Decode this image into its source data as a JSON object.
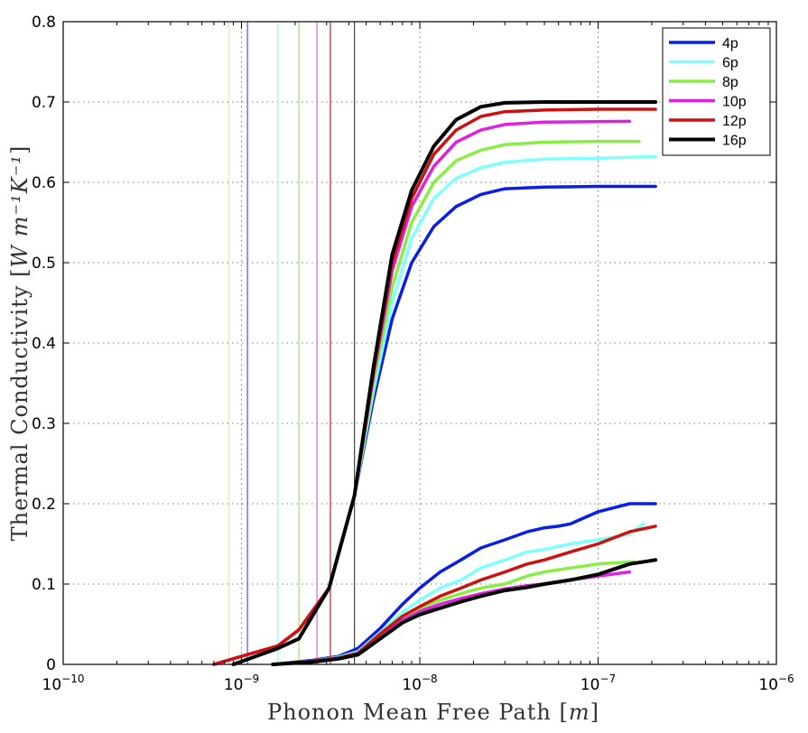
{
  "chart_data": {
    "type": "line",
    "xscale": "log",
    "xlabel": "Phonon Mean Free Path",
    "xunit": "m",
    "ylabel": "Thermal Conductivity",
    "yunit": "W m⁻¹K⁻¹",
    "xlim": [
      1e-10,
      1e-06
    ],
    "ylim": [
      0,
      0.8
    ],
    "grid": "dotted",
    "legend_position": "top-right",
    "xticks": [
      {
        "value": 1e-10,
        "base": "10",
        "exp": "−10"
      },
      {
        "value": 1e-09,
        "base": "10",
        "exp": "−9"
      },
      {
        "value": 1e-08,
        "base": "10",
        "exp": "−8"
      },
      {
        "value": 1e-07,
        "base": "10",
        "exp": "−7"
      },
      {
        "value": 1e-06,
        "base": "10",
        "exp": "−6"
      }
    ],
    "yticks": [
      {
        "value": 0,
        "label": "0"
      },
      {
        "value": 0.1,
        "label": "0.1"
      },
      {
        "value": 0.2,
        "label": "0.2"
      },
      {
        "value": 0.3,
        "label": "0.3"
      },
      {
        "value": 0.4,
        "label": "0.4"
      },
      {
        "value": 0.5,
        "label": "0.5"
      },
      {
        "value": 0.6,
        "label": "0.6"
      },
      {
        "value": 0.7,
        "label": "0.7"
      },
      {
        "value": 0.8,
        "label": "0.8"
      }
    ],
    "vertical_lines": [
      {
        "x": 8.5e-10,
        "color": "#f0f060"
      },
      {
        "x": 1.08e-09,
        "color": "#5555cc"
      },
      {
        "x": 1.6e-09,
        "color": "#80ffff"
      },
      {
        "x": 2.1e-09,
        "color": "#90ee50"
      },
      {
        "x": 2.65e-09,
        "color": "#e060e0"
      },
      {
        "x": 3.15e-09,
        "color": "#cc2222"
      },
      {
        "x": 4.3e-09,
        "color": "#444444"
      }
    ],
    "series": [
      {
        "name": "4p",
        "color": "#0a1ee6",
        "width": 3.5,
        "x": [
          7e-10,
          1e-09,
          1.6e-09,
          2.1e-09,
          3.1e-09,
          4.3e-09,
          5.5e-09,
          7e-09,
          9e-09,
          1.2e-08,
          1.6e-08,
          2.2e-08,
          3e-08,
          5e-08,
          1e-07,
          2.1e-07
        ],
        "y": [
          0,
          0.01,
          0.023,
          0.043,
          0.095,
          0.21,
          0.33,
          0.43,
          0.5,
          0.545,
          0.57,
          0.585,
          0.592,
          0.594,
          0.595,
          0.595
        ]
      },
      {
        "name": "6p",
        "color": "#80ffff",
        "width": 3.5,
        "x": [
          7e-10,
          1e-09,
          1.6e-09,
          2.1e-09,
          3.1e-09,
          4.3e-09,
          5.5e-09,
          7e-09,
          9e-09,
          1.2e-08,
          1.6e-08,
          2.2e-08,
          3e-08,
          5e-08,
          1e-07,
          2.1e-07
        ],
        "y": [
          0,
          0.01,
          0.023,
          0.043,
          0.095,
          0.21,
          0.34,
          0.45,
          0.53,
          0.58,
          0.605,
          0.618,
          0.625,
          0.629,
          0.63,
          0.632
        ]
      },
      {
        "name": "8p",
        "color": "#88ee44",
        "width": 3.5,
        "x": [
          7e-10,
          1e-09,
          1.6e-09,
          2.1e-09,
          3.1e-09,
          4.3e-09,
          5.5e-09,
          7e-09,
          9e-09,
          1.2e-08,
          1.6e-08,
          2.2e-08,
          3e-08,
          5e-08,
          1e-07,
          1.7e-07
        ],
        "y": [
          0,
          0.01,
          0.023,
          0.043,
          0.095,
          0.21,
          0.35,
          0.47,
          0.55,
          0.6,
          0.627,
          0.64,
          0.647,
          0.65,
          0.651,
          0.651
        ]
      },
      {
        "name": "10p",
        "color": "#dd22dd",
        "width": 3.5,
        "x": [
          7e-10,
          1e-09,
          1.6e-09,
          2.1e-09,
          3.1e-09,
          4.3e-09,
          5.5e-09,
          7e-09,
          9e-09,
          1.2e-08,
          1.6e-08,
          2.2e-08,
          3e-08,
          5e-08,
          1.5e-07
        ],
        "y": [
          0,
          0.01,
          0.023,
          0.043,
          0.095,
          0.21,
          0.36,
          0.49,
          0.57,
          0.62,
          0.65,
          0.665,
          0.672,
          0.675,
          0.676
        ]
      },
      {
        "name": "12p",
        "color": "#cc1111",
        "width": 3.5,
        "x": [
          7e-10,
          1e-09,
          1.6e-09,
          2.1e-09,
          3.1e-09,
          4.3e-09,
          5.5e-09,
          7e-09,
          9e-09,
          1.2e-08,
          1.6e-08,
          2.2e-08,
          3e-08,
          5e-08,
          1e-07,
          2.1e-07
        ],
        "y": [
          0,
          0.01,
          0.023,
          0.043,
          0.095,
          0.21,
          0.365,
          0.5,
          0.58,
          0.635,
          0.665,
          0.682,
          0.688,
          0.69,
          0.691,
          0.691
        ]
      },
      {
        "name": "16p",
        "color": "#000000",
        "width": 4,
        "x": [
          9e-10,
          1.6e-09,
          2.1e-09,
          3.1e-09,
          4.3e-09,
          5.5e-09,
          7e-09,
          9e-09,
          1.2e-08,
          1.6e-08,
          2.2e-08,
          3e-08,
          5e-08,
          1e-07,
          2.1e-07
        ],
        "y": [
          0,
          0.02,
          0.032,
          0.095,
          0.21,
          0.37,
          0.51,
          0.59,
          0.645,
          0.678,
          0.694,
          0.699,
          0.7,
          0.7,
          0.7
        ]
      }
    ],
    "secondary_series": [
      {
        "name": "4p",
        "color": "#0a1ee6",
        "width": 3.5,
        "x": [
          1.5e-09,
          2.5e-09,
          3.5e-09,
          4.5e-09,
          6e-09,
          8e-09,
          1e-08,
          1.3e-08,
          1.7e-08,
          2.2e-08,
          3e-08,
          4e-08,
          5e-08,
          6e-08,
          7e-08,
          1e-07,
          1.5e-07,
          2.1e-07
        ],
        "y": [
          0,
          0.005,
          0.01,
          0.02,
          0.045,
          0.075,
          0.095,
          0.115,
          0.13,
          0.145,
          0.155,
          0.165,
          0.17,
          0.172,
          0.175,
          0.19,
          0.2,
          0.2
        ]
      },
      {
        "name": "6p",
        "color": "#80ffff",
        "width": 3.5,
        "x": [
          1.5e-09,
          2.5e-09,
          3.5e-09,
          4.5e-09,
          6e-09,
          8e-09,
          1e-08,
          1.3e-08,
          1.7e-08,
          2.2e-08,
          3e-08,
          4e-08,
          5e-08,
          7e-08,
          1e-07,
          1.5e-07,
          1.8e-07
        ],
        "y": [
          0,
          0.004,
          0.009,
          0.016,
          0.04,
          0.065,
          0.08,
          0.095,
          0.105,
          0.12,
          0.13,
          0.14,
          0.143,
          0.15,
          0.155,
          0.162,
          0.175
        ]
      },
      {
        "name": "8p",
        "color": "#88ee44",
        "width": 3.5,
        "x": [
          1.5e-09,
          2.5e-09,
          3.5e-09,
          4.5e-09,
          6e-09,
          8e-09,
          1e-08,
          1.3e-08,
          1.7e-08,
          2.2e-08,
          3e-08,
          4e-08,
          5e-08,
          7e-08,
          1e-07,
          1.6e-07
        ],
        "y": [
          0,
          0.003,
          0.007,
          0.012,
          0.035,
          0.058,
          0.07,
          0.08,
          0.088,
          0.095,
          0.1,
          0.11,
          0.115,
          0.12,
          0.125,
          0.128
        ]
      },
      {
        "name": "10p",
        "color": "#dd22dd",
        "width": 3.5,
        "x": [
          1.5e-09,
          2.5e-09,
          3.5e-09,
          4.5e-09,
          6e-09,
          8e-09,
          1e-08,
          1.3e-08,
          1.7e-08,
          2.2e-08,
          3e-08,
          4e-08,
          5e-08,
          7e-08,
          1e-07,
          1.5e-07
        ],
        "y": [
          0,
          0.003,
          0.007,
          0.012,
          0.034,
          0.055,
          0.066,
          0.075,
          0.082,
          0.088,
          0.094,
          0.098,
          0.1,
          0.105,
          0.11,
          0.115
        ]
      },
      {
        "name": "12p",
        "color": "#cc1111",
        "width": 3.5,
        "x": [
          1.5e-09,
          2.5e-09,
          3.5e-09,
          4.5e-09,
          6e-09,
          8e-09,
          1e-08,
          1.3e-08,
          1.7e-08,
          2.2e-08,
          3e-08,
          4e-08,
          5e-08,
          7e-08,
          1e-07,
          1.5e-07,
          2.1e-07
        ],
        "y": [
          0,
          0.004,
          0.008,
          0.014,
          0.038,
          0.06,
          0.072,
          0.085,
          0.095,
          0.105,
          0.115,
          0.125,
          0.13,
          0.14,
          0.15,
          0.165,
          0.172
        ]
      },
      {
        "name": "16p",
        "color": "#000000",
        "width": 4,
        "x": [
          1.5e-09,
          2.5e-09,
          3.5e-09,
          4.5e-09,
          6e-09,
          8e-09,
          1e-08,
          1.3e-08,
          1.7e-08,
          2.2e-08,
          3e-08,
          4e-08,
          5e-08,
          7e-08,
          1e-07,
          1.5e-07,
          2.1e-07
        ],
        "y": [
          0,
          0.003,
          0.007,
          0.012,
          0.032,
          0.052,
          0.062,
          0.07,
          0.078,
          0.085,
          0.092,
          0.096,
          0.1,
          0.105,
          0.112,
          0.125,
          0.13
        ]
      }
    ]
  }
}
